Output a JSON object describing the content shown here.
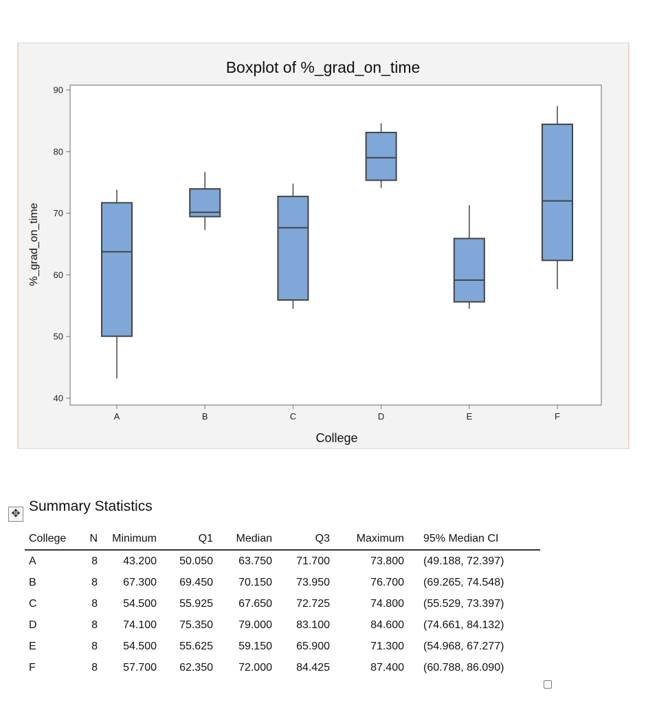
{
  "chart_data": {
    "type": "boxplot",
    "title": "Boxplot of %_grad_on_time",
    "xlabel": "College",
    "ylabel": "%_grad_on_time",
    "ylim": [
      40,
      90
    ],
    "yticks": [
      40,
      50,
      60,
      70,
      80,
      90
    ],
    "categories": [
      "A",
      "B",
      "C",
      "D",
      "E",
      "F"
    ],
    "boxes": [
      {
        "min": 43.2,
        "q1": 50.05,
        "median": 63.75,
        "q3": 71.7,
        "max": 73.8
      },
      {
        "min": 67.3,
        "q1": 69.45,
        "median": 70.15,
        "q3": 73.95,
        "max": 76.7
      },
      {
        "min": 54.5,
        "q1": 55.925,
        "median": 67.65,
        "q3": 72.725,
        "max": 74.8
      },
      {
        "min": 74.1,
        "q1": 75.35,
        "median": 79.0,
        "q3": 83.1,
        "max": 84.6
      },
      {
        "min": 54.5,
        "q1": 55.625,
        "median": 59.15,
        "q3": 65.9,
        "max": 71.3
      },
      {
        "min": 57.7,
        "q1": 62.35,
        "median": 72.0,
        "q3": 84.425,
        "max": 87.4
      }
    ],
    "box_color": "#7fa7d7",
    "grid": false
  },
  "summary": {
    "title": "Summary Statistics",
    "columns": [
      "College",
      "N",
      "Minimum",
      "Q1",
      "Median",
      "Q3",
      "Maximum",
      "95% Median CI"
    ],
    "rows": [
      [
        "A",
        "8",
        "43.200",
        "50.050",
        "63.750",
        "71.700",
        "73.800",
        "(49.188, 72.397)"
      ],
      [
        "B",
        "8",
        "67.300",
        "69.450",
        "70.150",
        "73.950",
        "76.700",
        "(69.265, 74.548)"
      ],
      [
        "C",
        "8",
        "54.500",
        "55.925",
        "67.650",
        "72.725",
        "74.800",
        "(55.529, 73.397)"
      ],
      [
        "D",
        "8",
        "74.100",
        "75.350",
        "79.000",
        "83.100",
        "84.600",
        "(74.661, 84.132)"
      ],
      [
        "E",
        "8",
        "54.500",
        "55.625",
        "59.150",
        "65.900",
        "71.300",
        "(54.968, 67.277)"
      ],
      [
        "F",
        "8",
        "57.700",
        "62.350",
        "72.000",
        "84.425",
        "87.400",
        "(60.788, 86.090)"
      ]
    ]
  }
}
